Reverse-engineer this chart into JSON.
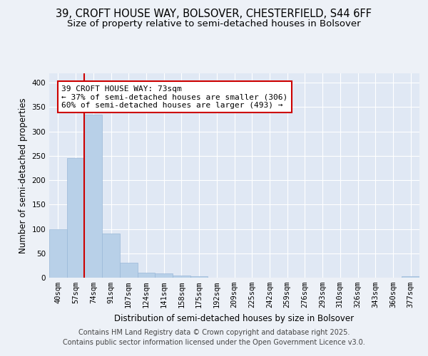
{
  "title_line1": "39, CROFT HOUSE WAY, BOLSOVER, CHESTERFIELD, S44 6FF",
  "title_line2": "Size of property relative to semi-detached houses in Bolsover",
  "xlabel": "Distribution of semi-detached houses by size in Bolsover",
  "ylabel": "Number of semi-detached properties",
  "categories": [
    "40sqm",
    "57sqm",
    "74sqm",
    "91sqm",
    "107sqm",
    "124sqm",
    "141sqm",
    "158sqm",
    "175sqm",
    "192sqm",
    "209sqm",
    "225sqm",
    "242sqm",
    "259sqm",
    "276sqm",
    "293sqm",
    "310sqm",
    "326sqm",
    "343sqm",
    "360sqm",
    "377sqm"
  ],
  "values": [
    100,
    245,
    335,
    91,
    31,
    10,
    9,
    5,
    3,
    0,
    0,
    0,
    0,
    0,
    0,
    0,
    0,
    0,
    0,
    0,
    3
  ],
  "bar_color": "#b8d0e8",
  "bar_edge_color": "#9ab8d8",
  "vline_color": "#cc0000",
  "annotation_box_color": "#cc0000",
  "ylim": [
    0,
    420
  ],
  "yticks": [
    0,
    50,
    100,
    150,
    200,
    250,
    300,
    350,
    400
  ],
  "background_color": "#edf1f7",
  "plot_bg_color": "#e0e8f4",
  "property_size_label": "39 CROFT HOUSE WAY: 73sqm",
  "pct_smaller": 37,
  "count_smaller": 306,
  "pct_larger": 60,
  "count_larger": 493,
  "footer_line1": "Contains HM Land Registry data © Crown copyright and database right 2025.",
  "footer_line2": "Contains public sector information licensed under the Open Government Licence v3.0.",
  "title_fontsize": 10.5,
  "subtitle_fontsize": 9.5,
  "axis_label_fontsize": 8.5,
  "tick_fontsize": 7.5,
  "annotation_fontsize": 8,
  "footer_fontsize": 7
}
